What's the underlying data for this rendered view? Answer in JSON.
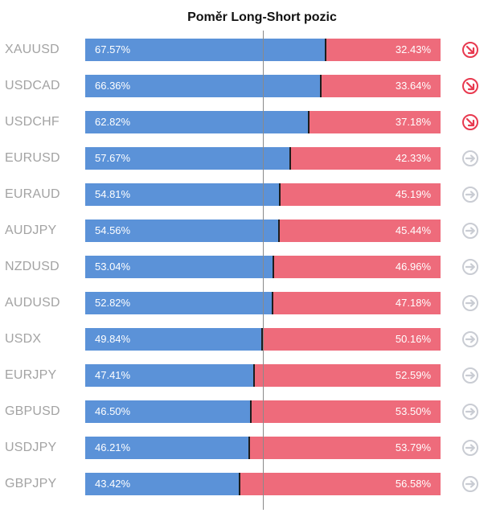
{
  "colors": {
    "long": "#5b92d8",
    "short": "#ee6b7b",
    "divider": "#1d1d1d",
    "symbol_text": "#a3a3a3",
    "icon_down": "#e8394f",
    "icon_neutral": "#c9ccd3"
  },
  "chart_data": {
    "type": "bar",
    "orientation": "horizontal",
    "stacked": true,
    "title": "Poměr Long-Short pozic",
    "xlim": [
      0,
      100
    ],
    "grid": false,
    "legend": "none",
    "reference_line": 50,
    "categories": [
      "XAUUSD",
      "USDCAD",
      "USDCHF",
      "EURUSD",
      "EURAUD",
      "AUDJPY",
      "NZDUSD",
      "AUDUSD",
      "USDX",
      "EURJPY",
      "GBPUSD",
      "USDJPY",
      "GBPJPY"
    ],
    "series": [
      {
        "values": [
          67.57,
          66.36,
          62.82,
          57.67,
          54.81,
          54.56,
          53.04,
          52.82,
          49.84,
          47.41,
          46.5,
          46.21,
          43.42
        ]
      },
      {
        "values": [
          32.43,
          33.64,
          37.18,
          42.33,
          45.19,
          45.44,
          46.96,
          47.18,
          50.16,
          52.59,
          53.5,
          53.79,
          56.58
        ]
      }
    ],
    "rows": [
      {
        "symbol": "XAUUSD",
        "long_label": "67.57%",
        "short_label": "32.43%",
        "long": 67.57,
        "short": 32.43,
        "trend_icon": "arrow-down-right-icon"
      },
      {
        "symbol": "USDCAD",
        "long_label": "66.36%",
        "short_label": "33.64%",
        "long": 66.36,
        "short": 33.64,
        "trend_icon": "arrow-down-right-icon"
      },
      {
        "symbol": "USDCHF",
        "long_label": "62.82%",
        "short_label": "37.18%",
        "long": 62.82,
        "short": 37.18,
        "trend_icon": "arrow-down-right-icon"
      },
      {
        "symbol": "EURUSD",
        "long_label": "57.67%",
        "short_label": "42.33%",
        "long": 57.67,
        "short": 42.33,
        "trend_icon": "arrow-right-icon"
      },
      {
        "symbol": "EURAUD",
        "long_label": "54.81%",
        "short_label": "45.19%",
        "long": 54.81,
        "short": 45.19,
        "trend_icon": "arrow-right-icon"
      },
      {
        "symbol": "AUDJPY",
        "long_label": "54.56%",
        "short_label": "45.44%",
        "long": 54.56,
        "short": 45.44,
        "trend_icon": "arrow-right-icon"
      },
      {
        "symbol": "NZDUSD",
        "long_label": "53.04%",
        "short_label": "46.96%",
        "long": 53.04,
        "short": 46.96,
        "trend_icon": "arrow-right-icon"
      },
      {
        "symbol": "AUDUSD",
        "long_label": "52.82%",
        "short_label": "47.18%",
        "long": 52.82,
        "short": 47.18,
        "trend_icon": "arrow-right-icon"
      },
      {
        "symbol": "USDX",
        "long_label": "49.84%",
        "short_label": "50.16%",
        "long": 49.84,
        "short": 50.16,
        "trend_icon": "arrow-right-icon"
      },
      {
        "symbol": "EURJPY",
        "long_label": "47.41%",
        "short_label": "52.59%",
        "long": 47.41,
        "short": 52.59,
        "trend_icon": "arrow-right-icon"
      },
      {
        "symbol": "GBPUSD",
        "long_label": "46.50%",
        "short_label": "53.50%",
        "long": 46.5,
        "short": 53.5,
        "trend_icon": "arrow-right-icon"
      },
      {
        "symbol": "USDJPY",
        "long_label": "46.21%",
        "short_label": "53.79%",
        "long": 46.21,
        "short": 53.79,
        "trend_icon": "arrow-right-icon"
      },
      {
        "symbol": "GBPJPY",
        "long_label": "43.42%",
        "short_label": "56.58%",
        "long": 43.42,
        "short": 56.58,
        "trend_icon": "arrow-right-icon"
      }
    ]
  }
}
